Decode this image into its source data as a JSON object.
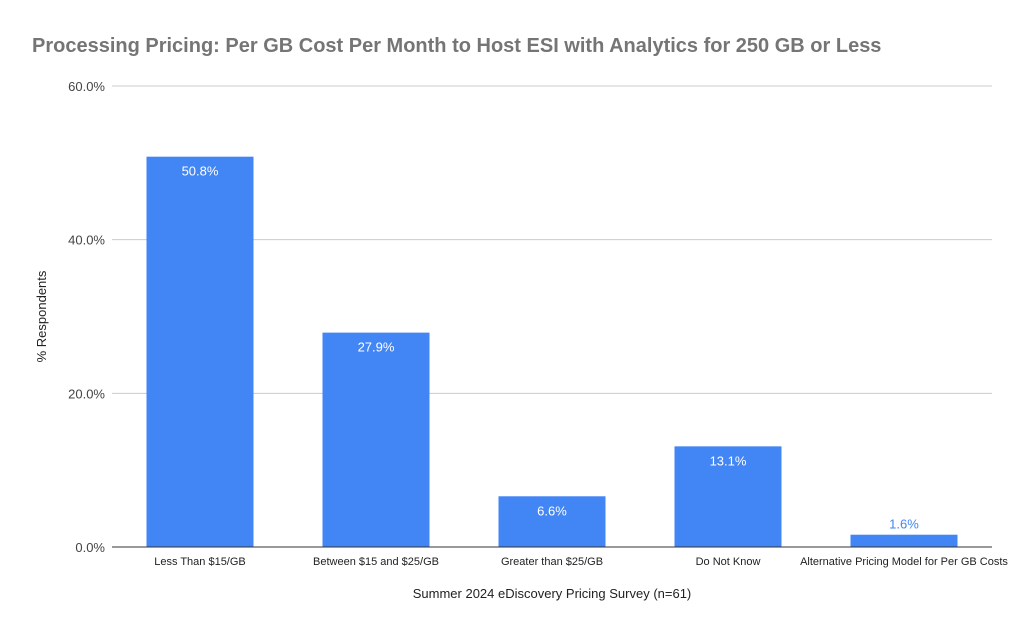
{
  "chart_data": {
    "type": "bar",
    "title": "Processing Pricing: Per GB Cost Per Month to Host ESI with Analytics for 250 GB or Less",
    "xlabel": "Summer 2024 eDiscovery Pricing Survey (n=61)",
    "ylabel": "% Respondents",
    "categories": [
      "Less Than $15/GB",
      "Between $15 and $25/GB",
      "Greater than $25/GB",
      "Do Not Know",
      "Alternative Pricing Model for Per GB Costs"
    ],
    "values": [
      50.8,
      27.9,
      6.6,
      13.1,
      1.6
    ],
    "data_labels": [
      "50.8%",
      "27.9%",
      "6.6%",
      "13.1%",
      "1.6%"
    ],
    "ylim": [
      0,
      60
    ],
    "yticks": [
      0,
      20,
      40,
      60
    ],
    "ytick_labels": [
      "0.0%",
      "20.0%",
      "40.0%",
      "60.0%"
    ],
    "grid": true,
    "legend": "none",
    "colors": {
      "bar": "#4285f4",
      "label_inside": "#ffffff",
      "label_outside": "#4285f4",
      "grid": "#cccccc",
      "axis": "#333333",
      "title": "#757575"
    }
  }
}
